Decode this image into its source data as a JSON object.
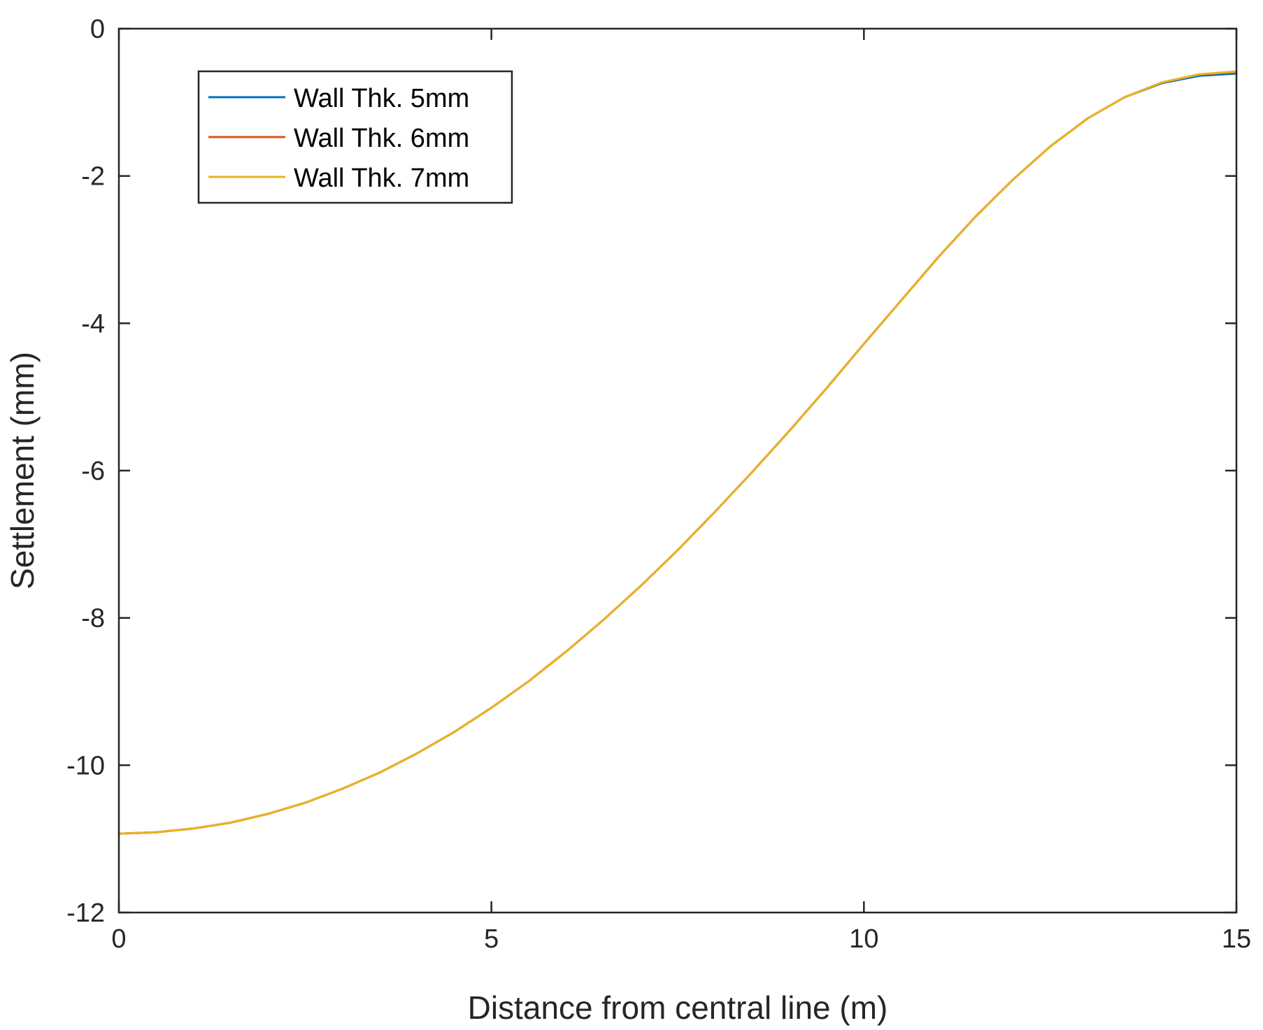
{
  "chart_data": {
    "type": "line",
    "title": "",
    "xlabel": "Distance from central line (m)",
    "ylabel": "Settlement (mm)",
    "xlim": [
      0,
      15
    ],
    "ylim": [
      -12,
      0
    ],
    "xticks": [
      0,
      5,
      10,
      15
    ],
    "xtick_labels": [
      "0",
      "5",
      "10",
      "15"
    ],
    "yticks": [
      0,
      -2,
      -4,
      -6,
      -8,
      -10,
      -12
    ],
    "ytick_labels": [
      "0",
      "-2",
      "-4",
      "-6",
      "-8",
      "-10",
      "-12"
    ],
    "grid": false,
    "legend_position": "top-left",
    "x": [
      0,
      0.5,
      1,
      1.5,
      2,
      2.5,
      3,
      3.5,
      4,
      4.5,
      5,
      5.5,
      6,
      6.5,
      7,
      7.5,
      8,
      8.5,
      9,
      9.5,
      10,
      10.5,
      11,
      11.5,
      12,
      12.5,
      13,
      13.5,
      14,
      14.5,
      15
    ],
    "series": [
      {
        "name": "Wall Thk. 5mm",
        "color": "#0072BD",
        "values": [
          -10.93,
          -10.91,
          -10.86,
          -10.78,
          -10.66,
          -10.51,
          -10.32,
          -10.1,
          -9.84,
          -9.55,
          -9.22,
          -8.86,
          -8.46,
          -8.03,
          -7.57,
          -7.08,
          -6.56,
          -6.02,
          -5.46,
          -4.88,
          -4.28,
          -3.69,
          -3.1,
          -2.55,
          -2.05,
          -1.6,
          -1.22,
          -0.93,
          -0.74,
          -0.64,
          -0.61
        ]
      },
      {
        "name": "Wall Thk. 6mm",
        "color": "#D95319",
        "values": [
          -10.93,
          -10.91,
          -10.86,
          -10.78,
          -10.66,
          -10.51,
          -10.32,
          -10.1,
          -9.84,
          -9.55,
          -9.22,
          -8.86,
          -8.46,
          -8.03,
          -7.57,
          -7.08,
          -6.56,
          -6.02,
          -5.46,
          -4.88,
          -4.28,
          -3.69,
          -3.1,
          -2.55,
          -2.05,
          -1.6,
          -1.22,
          -0.93,
          -0.73,
          -0.62,
          -0.59
        ]
      },
      {
        "name": "Wall Thk. 7mm",
        "color": "#EDB120",
        "values": [
          -10.93,
          -10.91,
          -10.86,
          -10.78,
          -10.66,
          -10.51,
          -10.32,
          -10.1,
          -9.84,
          -9.55,
          -9.22,
          -8.86,
          -8.46,
          -8.03,
          -7.57,
          -7.08,
          -6.56,
          -6.02,
          -5.46,
          -4.88,
          -4.28,
          -3.69,
          -3.1,
          -2.55,
          -2.05,
          -1.6,
          -1.22,
          -0.93,
          -0.73,
          -0.62,
          -0.58
        ]
      }
    ]
  }
}
